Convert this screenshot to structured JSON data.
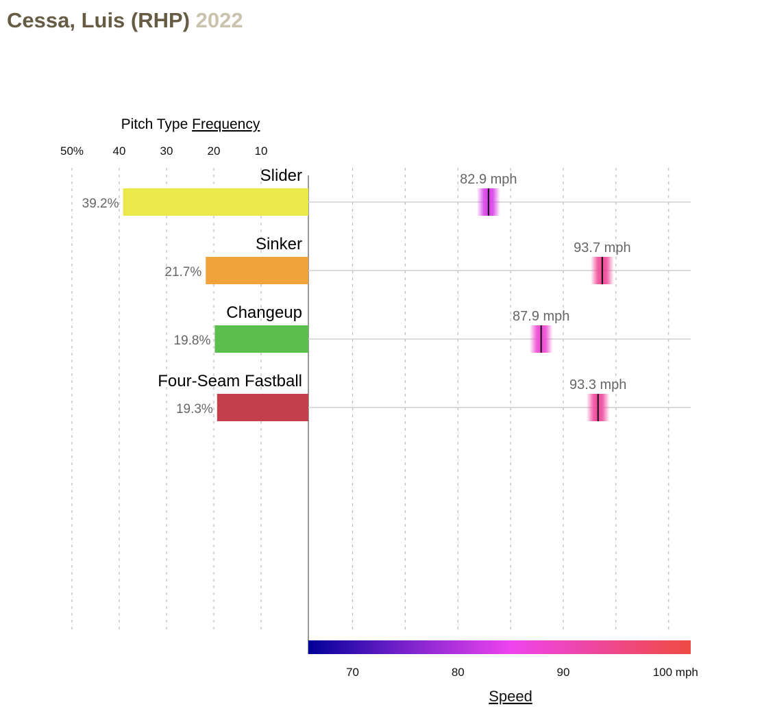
{
  "header": {
    "player": "Cessa, Luis (RHP)",
    "year": "2022"
  },
  "chart_data": {
    "type": "bar",
    "frequency_panel": {
      "label_prefix": "Pitch Type",
      "label_link": "Frequency",
      "ticks": [
        {
          "value": 50,
          "label": "50%"
        },
        {
          "value": 40,
          "label": "40"
        },
        {
          "value": 30,
          "label": "30"
        },
        {
          "value": 20,
          "label": "20"
        },
        {
          "value": 10,
          "label": "10"
        }
      ]
    },
    "speed_panel": {
      "xlabel": "Speed",
      "xlim": [
        65.8,
        102.1
      ],
      "ticks": [
        {
          "value": 70,
          "label": "70"
        },
        {
          "value": 80,
          "label": "80"
        },
        {
          "value": 90,
          "label": "90"
        },
        {
          "value": 100,
          "label": "100 mph"
        }
      ],
      "gridlines": [
        70,
        75,
        80,
        85,
        90,
        95,
        100
      ],
      "colorbar": {
        "stops": [
          {
            "value": 65.8,
            "color": "#000099"
          },
          {
            "value": 75,
            "color": "#7a22cc"
          },
          {
            "value": 85,
            "color": "#ee44ee"
          },
          {
            "value": 102.1,
            "color": "#ef4a42"
          }
        ]
      }
    },
    "series": [
      {
        "pitch": "Slider",
        "frequency": 39.2,
        "frequency_label": "39.2%",
        "speed": 82.9,
        "speed_label": "82.9 mph",
        "color": "#ebe84c"
      },
      {
        "pitch": "Sinker",
        "frequency": 21.7,
        "frequency_label": "21.7%",
        "speed": 93.7,
        "speed_label": "93.7 mph",
        "color": "#f2a23b"
      },
      {
        "pitch": "Changeup",
        "frequency": 19.8,
        "frequency_label": "19.8%",
        "speed": 87.9,
        "speed_label": "87.9 mph",
        "color": "#5bbf4e"
      },
      {
        "pitch": "Four-Seam Fastball",
        "frequency": 19.3,
        "frequency_label": "19.3%",
        "speed": 93.3,
        "speed_label": "93.3 mph",
        "color": "#c33f4c"
      }
    ]
  }
}
